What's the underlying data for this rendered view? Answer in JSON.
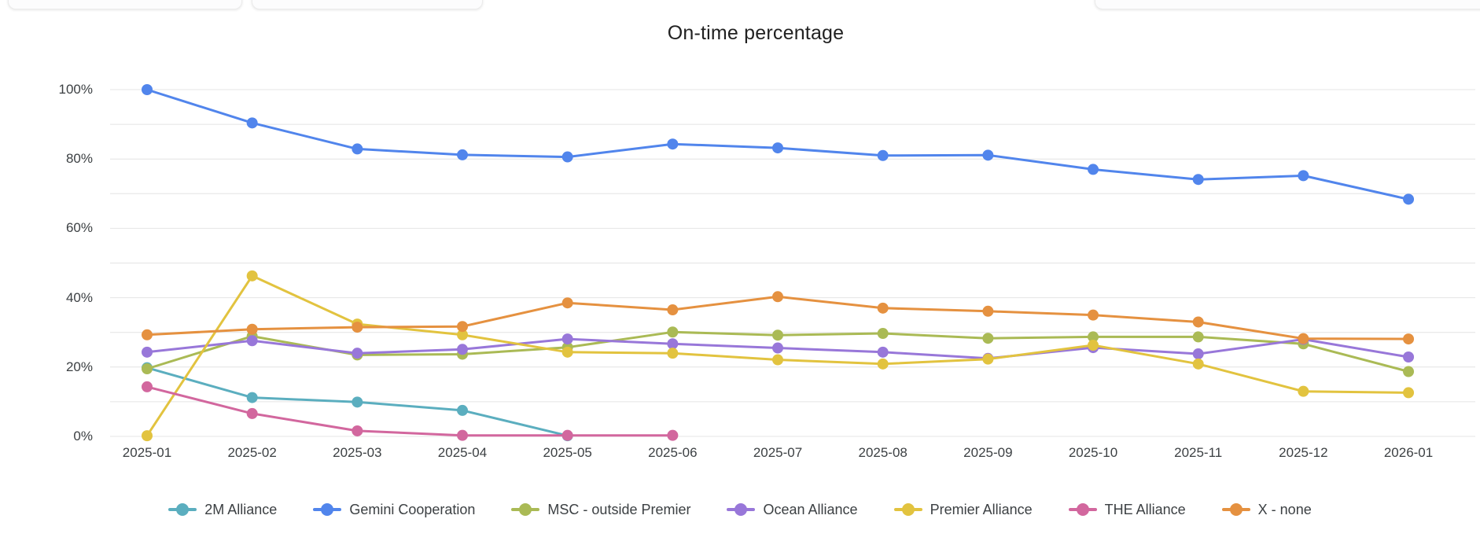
{
  "page": {
    "background": "#ffffff"
  },
  "chart_data": {
    "type": "line",
    "title": "On-time percentage",
    "x": [
      "2025-01",
      "2025-02",
      "2025-03",
      "2025-04",
      "2025-05",
      "2025-06",
      "2025-07",
      "2025-08",
      "2025-09",
      "2025-10",
      "2025-11",
      "2025-12",
      "2026-01"
    ],
    "series": [
      {
        "name": "2M Alliance",
        "color": "#5BAEBF",
        "values": [
          19.8,
          11.2,
          9.9,
          7.5,
          0.2,
          null,
          null,
          null,
          null,
          null,
          null,
          null,
          null
        ]
      },
      {
        "name": "Gemini Cooperation",
        "color": "#5185EC",
        "values": [
          100,
          90.4,
          82.9,
          81.2,
          80.6,
          84.3,
          83.2,
          81.0,
          81.1,
          77.0,
          74.1,
          75.2,
          68.4
        ]
      },
      {
        "name": "MSC - outside Premier",
        "color": "#AABA55",
        "values": [
          19.5,
          28.9,
          23.5,
          23.7,
          25.7,
          30.1,
          29.2,
          29.7,
          28.3,
          28.7,
          28.7,
          26.7,
          18.7
        ]
      },
      {
        "name": "Ocean Alliance",
        "color": "#9877D9",
        "values": [
          24.3,
          27.6,
          24.0,
          25.1,
          28.1,
          26.7,
          25.5,
          24.3,
          22.5,
          25.6,
          23.8,
          28.0,
          22.9
        ]
      },
      {
        "name": "Premier Alliance",
        "color": "#E2C33F",
        "values": [
          0.2,
          46.3,
          32.4,
          29.3,
          24.3,
          24.0,
          22.1,
          20.9,
          22.3,
          26.3,
          20.9,
          13.0,
          12.6
        ]
      },
      {
        "name": "THE Alliance",
        "color": "#D2679E",
        "values": [
          14.3,
          6.6,
          1.6,
          0.3,
          0.3,
          0.3,
          null,
          null,
          null,
          null,
          null,
          null,
          null
        ]
      },
      {
        "name": "X - none",
        "color": "#E59140",
        "values": [
          29.3,
          30.9,
          31.5,
          31.7,
          38.5,
          36.5,
          40.3,
          37.0,
          36.1,
          35.0,
          33.0,
          28.2,
          28.1
        ]
      }
    ],
    "ylim": [
      0,
      100
    ],
    "ytick_percents": [
      0,
      20,
      40,
      60,
      80,
      100
    ],
    "ytick_labels": [
      "0%",
      "20%",
      "40%",
      "60%",
      "80%",
      "100%"
    ],
    "gridline_step_percent": 10,
    "grid": true,
    "legend_position": "bottom"
  }
}
